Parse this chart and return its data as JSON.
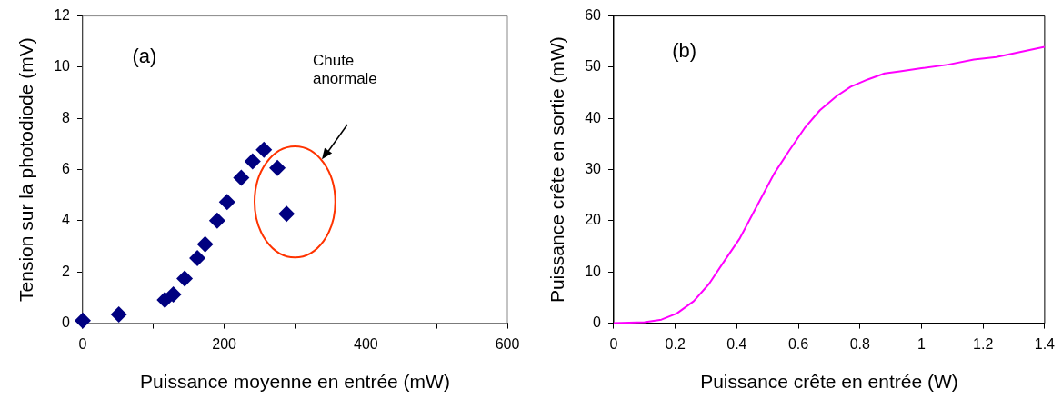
{
  "chart_data": [
    {
      "type": "scatter",
      "xlabel": "Puissance moyenne en entrée (mW)",
      "ylabel": "Tension sur la photodiode (mV)",
      "annotations": [
        "(a)",
        "Chute anormale"
      ],
      "series": [
        {
          "color": "#000080",
          "x": [
            0,
            51,
            116,
            128,
            144,
            162,
            173,
            190,
            204,
            224,
            240,
            256,
            275,
            288
          ],
          "values": [
            0.1,
            0.34,
            0.91,
            1.12,
            1.74,
            2.54,
            3.08,
            4.01,
            4.73,
            5.68,
            6.32,
            6.78,
            6.07,
            4.27
          ]
        }
      ],
      "xlim": [
        0,
        600
      ],
      "xticks": [
        0,
        {
          "value": 100,
          "label": null
        },
        200,
        {
          "value": 300,
          "label": null
        },
        400,
        {
          "value": 500,
          "label": null
        },
        600
      ],
      "ylim": [
        0,
        12
      ],
      "yticks": [
        0,
        2,
        4,
        6,
        8,
        10,
        12
      ],
      "marker": "diamond",
      "grid": false,
      "legend": false
    },
    {
      "type": "line",
      "xlabel": "Puissance crête en entrée (W)",
      "ylabel": "Puissance crête en sortie (mW)",
      "annotations": [
        "(b)"
      ],
      "series": [
        {
          "color": "#ff00ff",
          "x": [
            0,
            0.1,
            0.155,
            0.205,
            0.26,
            0.31,
            0.36,
            0.41,
            0.46,
            0.52,
            0.57,
            0.62,
            0.67,
            0.725,
            0.77,
            0.825,
            0.88,
            0.93,
            1.0,
            1.086,
            1.17,
            1.243,
            1.337,
            1.4
          ],
          "values": [
            0,
            0.2,
            0.7,
            1.9,
            4.3,
            7.7,
            12.2,
            16.6,
            22.3,
            29.1,
            33.7,
            38.1,
            41.6,
            44.4,
            46.2,
            47.6,
            48.8,
            49.2,
            49.8,
            50.5,
            51.5,
            52.0,
            53.2,
            54.0
          ]
        }
      ],
      "xlim": [
        0,
        1.4
      ],
      "xticks": [
        0,
        0.2,
        0.4,
        0.6,
        0.8,
        1,
        1.2,
        1.4
      ],
      "ylim": [
        0,
        60
      ],
      "yticks": [
        0,
        10,
        20,
        30,
        40,
        50,
        60
      ],
      "marker": "none",
      "line_style": "solid",
      "grid": false,
      "legend": false
    }
  ]
}
